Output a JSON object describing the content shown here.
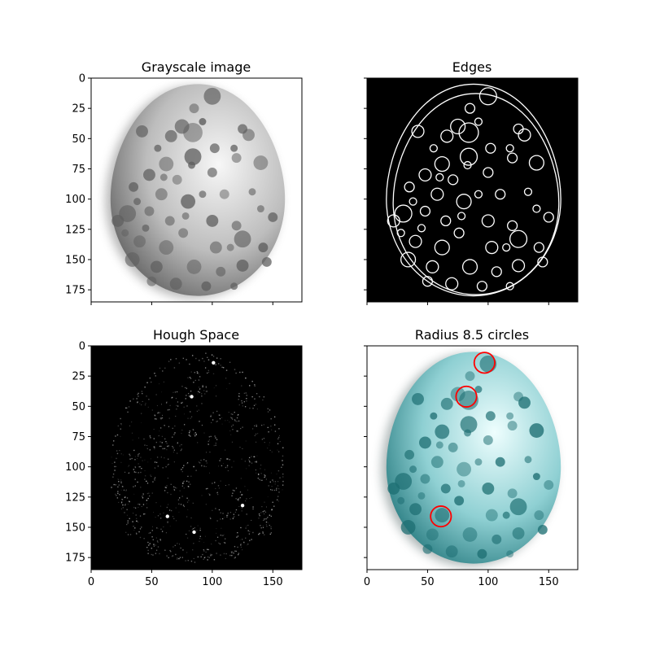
{
  "chart_data": [
    {
      "type": "image",
      "title": "Grayscale image",
      "xlim": [
        0,
        174
      ],
      "ylim": [
        185,
        0
      ],
      "xticks": [
        0,
        50,
        100,
        150
      ],
      "yticks": [
        0,
        25,
        50,
        75,
        100,
        125,
        150,
        175
      ],
      "show_xticklabels": false,
      "show_yticklabels": true,
      "image": {
        "kind": "egg",
        "colormap": "gray",
        "background": "#ffffff",
        "egg_light": "#f7f7f7",
        "egg_mid": "#bdbdbd",
        "egg_dark": "#5a5a5a",
        "spot_color": "#5e5e5e",
        "shadow_color": "#7c7c7c"
      }
    },
    {
      "type": "image",
      "title": "Edges",
      "xlim": [
        0,
        174
      ],
      "ylim": [
        185,
        0
      ],
      "xticks": [
        0,
        50,
        100,
        150
      ],
      "yticks": [
        0,
        25,
        50,
        75,
        100,
        125,
        150,
        175
      ],
      "show_xticklabels": false,
      "show_yticklabels": false,
      "image": {
        "kind": "edges",
        "background": "#000000",
        "edge_color": "#ffffff"
      }
    },
    {
      "type": "image",
      "title": "Hough Space",
      "xlim": [
        0,
        174
      ],
      "ylim": [
        185,
        0
      ],
      "xticks": [
        0,
        50,
        100,
        150
      ],
      "yticks": [
        0,
        25,
        50,
        75,
        100,
        125,
        150,
        175
      ],
      "show_xticklabels": true,
      "show_yticklabels": true,
      "image": {
        "kind": "hough",
        "background": "#000000",
        "point_color": "#d8d8d8",
        "peaks": [
          [
            63,
            141
          ],
          [
            83,
            42
          ],
          [
            101,
            14
          ],
          [
            125,
            132
          ],
          [
            85,
            154
          ]
        ]
      }
    },
    {
      "type": "image",
      "title": "Radius 8.5 circles",
      "xlim": [
        0,
        174
      ],
      "ylim": [
        185,
        0
      ],
      "xticks": [
        0,
        50,
        100,
        150
      ],
      "yticks": [
        0,
        25,
        50,
        75,
        100,
        125,
        150,
        175
      ],
      "show_xticklabels": true,
      "show_yticklabels": false,
      "image": {
        "kind": "egg",
        "colormap": "cyan",
        "background": "#ffffff",
        "egg_light": "#eefefe",
        "egg_mid": "#8fd0d3",
        "egg_dark": "#1f7479",
        "spot_color": "#1d6e72",
        "shadow_color": "#6a7b7c"
      },
      "circles": {
        "radius": 8.5,
        "color": "#ff0000",
        "centers": [
          [
            97,
            14
          ],
          [
            82,
            42
          ],
          [
            61,
            141
          ]
        ]
      }
    }
  ]
}
